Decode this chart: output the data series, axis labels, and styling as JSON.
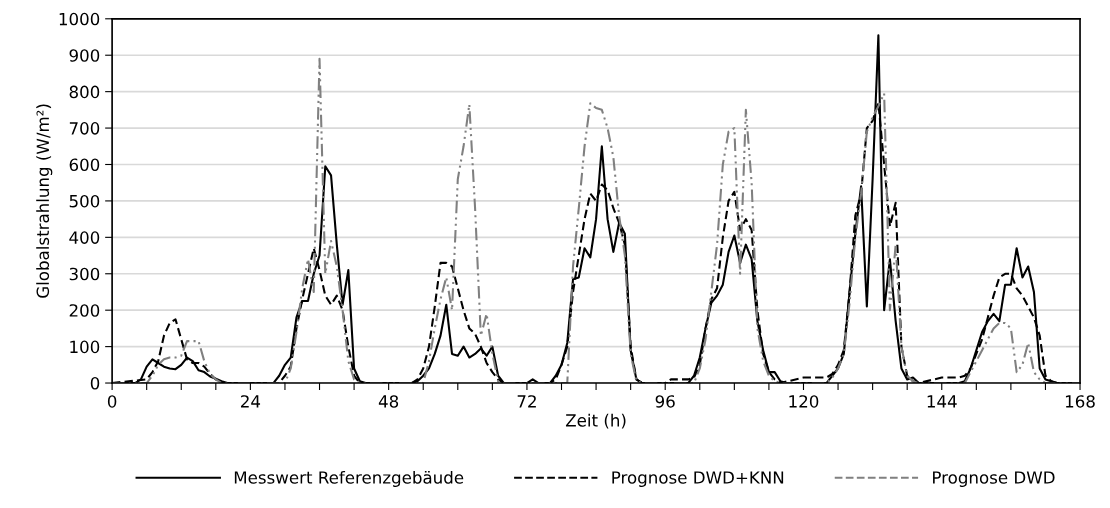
{
  "chart_data": {
    "type": "line",
    "xlabel": "Zeit (h)",
    "ylabel": "Globalstrahlung (W/m²)",
    "xlim": [
      0,
      168
    ],
    "ylim": [
      0,
      1000
    ],
    "xticks": [
      0,
      {
        "value": 6,
        "label": null
      },
      {
        "value": 12,
        "label": null
      },
      {
        "value": 18,
        "label": null
      },
      24,
      {
        "value": 30,
        "label": null
      },
      {
        "value": 36,
        "label": null
      },
      {
        "value": 42,
        "label": null
      },
      48,
      {
        "value": 54,
        "label": null
      },
      {
        "value": 60,
        "label": null
      },
      {
        "value": 66,
        "label": null
      },
      72,
      {
        "value": 78,
        "label": null
      },
      {
        "value": 84,
        "label": null
      },
      {
        "value": 90,
        "label": null
      },
      96,
      {
        "value": 102,
        "label": null
      },
      {
        "value": 108,
        "label": null
      },
      {
        "value": 114,
        "label": null
      },
      120,
      {
        "value": 126,
        "label": null
      },
      {
        "value": 132,
        "label": null
      },
      {
        "value": 138,
        "label": null
      },
      144,
      {
        "value": 150,
        "label": null
      },
      {
        "value": 156,
        "label": null
      },
      {
        "value": 162,
        "label": null
      },
      168
    ],
    "yticks": [
      0,
      100,
      200,
      300,
      400,
      500,
      600,
      700,
      800,
      900,
      1000
    ],
    "grid": "y",
    "legend": "bottom",
    "marker": "none",
    "series": [
      {
        "name": "Messwert Referenzgebäude",
        "color": "#000000",
        "line_style": "solid",
        "x": [
          0,
          4,
          5,
          6,
          7,
          8,
          9,
          10,
          11,
          12,
          13,
          14,
          15,
          16,
          17,
          18,
          19,
          20,
          28,
          29,
          30,
          31,
          32,
          33,
          34,
          35,
          36,
          37,
          38,
          39,
          40,
          41,
          42,
          43,
          44,
          52,
          53,
          54,
          55,
          56,
          57,
          58,
          59,
          60,
          61,
          62,
          63,
          64,
          65,
          66,
          67,
          68,
          72,
          73,
          74,
          76,
          77,
          78,
          79,
          80,
          81,
          82,
          83,
          84,
          85,
          86,
          87,
          88,
          89,
          90,
          91,
          92,
          100,
          101,
          102,
          103,
          104,
          105,
          106,
          107,
          108,
          109,
          110,
          111,
          112,
          113,
          114,
          115,
          116,
          117,
          124,
          125,
          126,
          127,
          128,
          129,
          130,
          131,
          132,
          133,
          134,
          135,
          136,
          137,
          138,
          139,
          140,
          147,
          148,
          149,
          150,
          151,
          152,
          153,
          154,
          155,
          156,
          157,
          158,
          159,
          160,
          161,
          162,
          163,
          164,
          168
        ],
        "values": [
          0,
          0,
          10,
          45,
          65,
          55,
          45,
          40,
          38,
          50,
          70,
          60,
          35,
          30,
          18,
          12,
          5,
          0,
          0,
          20,
          50,
          70,
          180,
          225,
          225,
          300,
          350,
          595,
          570,
          380,
          215,
          310,
          40,
          5,
          0,
          0,
          5,
          20,
          40,
          80,
          130,
          215,
          80,
          75,
          100,
          70,
          80,
          95,
          75,
          100,
          20,
          0,
          0,
          10,
          0,
          0,
          20,
          50,
          110,
          285,
          290,
          370,
          345,
          450,
          650,
          450,
          360,
          440,
          410,
          90,
          10,
          0,
          0,
          20,
          70,
          150,
          220,
          240,
          270,
          360,
          405,
          330,
          380,
          340,
          170,
          90,
          30,
          30,
          5,
          0,
          0,
          20,
          40,
          80,
          250,
          410,
          540,
          210,
          560,
          955,
          200,
          340,
          170,
          40,
          10,
          15,
          0,
          0,
          5,
          40,
          90,
          140,
          170,
          190,
          170,
          270,
          270,
          370,
          290,
          320,
          250,
          40,
          10,
          5,
          0,
          0
        ]
      },
      {
        "name": "Prognose DWD+KNN",
        "color": "#000000",
        "line_style": "dashed",
        "x": [
          0,
          6,
          7,
          8,
          9,
          10,
          11,
          12,
          13,
          14,
          15,
          16,
          17,
          18,
          19,
          29,
          30,
          31,
          32,
          33,
          34,
          35,
          36,
          37,
          38,
          39,
          40,
          41,
          42,
          43,
          52,
          53,
          54,
          55,
          56,
          57,
          58,
          59,
          60,
          61,
          62,
          63,
          64,
          65,
          66,
          67,
          68,
          76,
          77,
          78,
          79,
          80,
          81,
          82,
          83,
          84,
          85,
          86,
          87,
          88,
          89,
          90,
          91,
          92,
          96,
          97,
          98,
          99,
          100,
          101,
          102,
          103,
          104,
          105,
          106,
          107,
          108,
          109,
          110,
          111,
          112,
          113,
          114,
          115,
          116,
          120,
          121,
          122,
          123,
          124,
          125,
          126,
          127,
          128,
          129,
          130,
          131,
          132,
          133,
          134,
          135,
          136,
          137,
          138,
          139,
          140,
          144,
          145,
          146,
          147,
          148,
          149,
          150,
          151,
          152,
          153,
          154,
          155,
          156,
          157,
          158,
          159,
          160,
          161,
          162,
          163,
          164,
          168
        ],
        "values": [
          0,
          10,
          30,
          60,
          130,
          165,
          175,
          120,
          65,
          55,
          55,
          45,
          25,
          10,
          0,
          0,
          20,
          45,
          150,
          230,
          300,
          370,
          310,
          240,
          215,
          240,
          200,
          100,
          20,
          0,
          0,
          10,
          40,
          100,
          210,
          330,
          330,
          320,
          260,
          200,
          150,
          135,
          100,
          55,
          30,
          10,
          0,
          0,
          10,
          50,
          100,
          250,
          350,
          450,
          520,
          500,
          545,
          530,
          480,
          440,
          380,
          100,
          10,
          0,
          0,
          10,
          10,
          10,
          10,
          15,
          50,
          150,
          230,
          260,
          400,
          500,
          525,
          420,
          450,
          420,
          200,
          80,
          30,
          10,
          0,
          15,
          15,
          15,
          15,
          15,
          25,
          50,
          90,
          250,
          460,
          520,
          700,
          720,
          770,
          600,
          430,
          495,
          100,
          20,
          5,
          0,
          15,
          15,
          15,
          15,
          20,
          40,
          80,
          120,
          180,
          240,
          290,
          300,
          300,
          260,
          240,
          210,
          180,
          130,
          20,
          5,
          0,
          0
        ]
      },
      {
        "name": "Prognose DWD",
        "color": "#808080",
        "line_style": "dashdot",
        "x": [
          0,
          6,
          7,
          8,
          9,
          10,
          11,
          12,
          13,
          14,
          15,
          16,
          17,
          18,
          19,
          30,
          31,
          32,
          33,
          34,
          35,
          36,
          37,
          38,
          39,
          40,
          41,
          42,
          43,
          54,
          55,
          56,
          57,
          58,
          59,
          60,
          61,
          62,
          63,
          64,
          65,
          66,
          67,
          68,
          79,
          80,
          81,
          82,
          83,
          84,
          85,
          86,
          87,
          88,
          89,
          90,
          91,
          92,
          101,
          102,
          103,
          104,
          105,
          106,
          107,
          108,
          109,
          110,
          111,
          112,
          113,
          114,
          115,
          116,
          124,
          125,
          126,
          127,
          128,
          129,
          130,
          131,
          132,
          133,
          134,
          135,
          136,
          137,
          138,
          139,
          140,
          148,
          149,
          150,
          151,
          152,
          153,
          154,
          155,
          156,
          157,
          158,
          159,
          160,
          161,
          162,
          168
        ],
        "values": [
          0,
          0,
          20,
          50,
          65,
          70,
          70,
          75,
          115,
          115,
          115,
          60,
          25,
          10,
          0,
          0,
          40,
          140,
          260,
          340,
          250,
          890,
          300,
          390,
          320,
          200,
          60,
          10,
          0,
          0,
          60,
          150,
          230,
          290,
          200,
          560,
          650,
          765,
          480,
          130,
          190,
          80,
          5,
          0,
          0,
          320,
          480,
          650,
          768,
          755,
          750,
          700,
          620,
          460,
          350,
          80,
          5,
          0,
          0,
          40,
          120,
          250,
          380,
          600,
          690,
          700,
          300,
          750,
          550,
          150,
          60,
          20,
          5,
          0,
          0,
          15,
          40,
          80,
          220,
          400,
          520,
          690,
          730,
          760,
          795,
          200,
          380,
          100,
          20,
          5,
          0,
          0,
          30,
          60,
          90,
          120,
          150,
          165,
          165,
          150,
          30,
          50,
          110,
          30,
          10,
          0,
          0
        ]
      }
    ]
  }
}
